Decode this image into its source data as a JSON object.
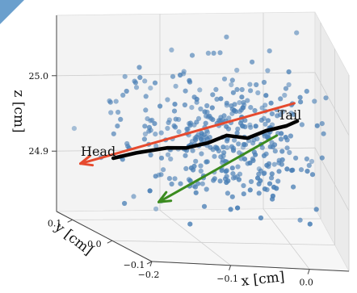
{
  "chart_data": {
    "type": "scatter",
    "title": "",
    "xlabel": "x [cm]",
    "ylabel": "y [cm]",
    "zlabel": "z [cm]",
    "xlim": [
      -0.2,
      0.05
    ],
    "ylim": [
      -0.1,
      0.14
    ],
    "zlim": [
      24.82,
      25.08
    ],
    "x_ticks": [
      -0.2,
      -0.1,
      0.0
    ],
    "x_tick_labels": [
      "−0.2",
      "−0.1",
      "0.0"
    ],
    "y_ticks": [
      -0.1,
      0.0,
      0.1
    ],
    "y_tick_labels": [
      "−0.1",
      "0.0",
      "0.1"
    ],
    "z_ticks": [
      24.9,
      25.0
    ],
    "z_tick_labels": [
      "24.9",
      "25.0"
    ],
    "grid": true,
    "legend": "none",
    "series": [
      {
        "type": "scatter",
        "color": "#4a7fb5",
        "point_count": 420,
        "center": [
          -0.07,
          0.03,
          24.95
        ],
        "spread": [
          0.055,
          0.045,
          0.045
        ]
      },
      {
        "type": "line",
        "color": "#000000",
        "x": [
          -0.17,
          -0.15,
          -0.12,
          -0.1,
          -0.08,
          -0.06,
          -0.04,
          -0.02,
          0.0,
          0.01
        ],
        "y": [
          0.07,
          0.06,
          0.05,
          0.05,
          0.04,
          0.04,
          0.03,
          0.03,
          0.02,
          0.01
        ],
        "z": [
          24.91,
          24.92,
          24.93,
          24.93,
          24.94,
          24.95,
          24.95,
          24.96,
          24.97,
          24.98
        ]
      }
    ],
    "annotations": [
      {
        "text": "Head"
      },
      {
        "text": "Tail"
      }
    ],
    "arrows": [
      {
        "color": "#e64a2e",
        "from": [
          0.02,
          0.08,
          24.98
        ],
        "to": [
          -0.2,
          0.08,
          24.9
        ]
      },
      {
        "color": "#3b8b1f",
        "from": [
          -0.02,
          -0.02,
          24.97
        ],
        "to": [
          -0.11,
          0.11,
          24.84
        ]
      }
    ]
  }
}
